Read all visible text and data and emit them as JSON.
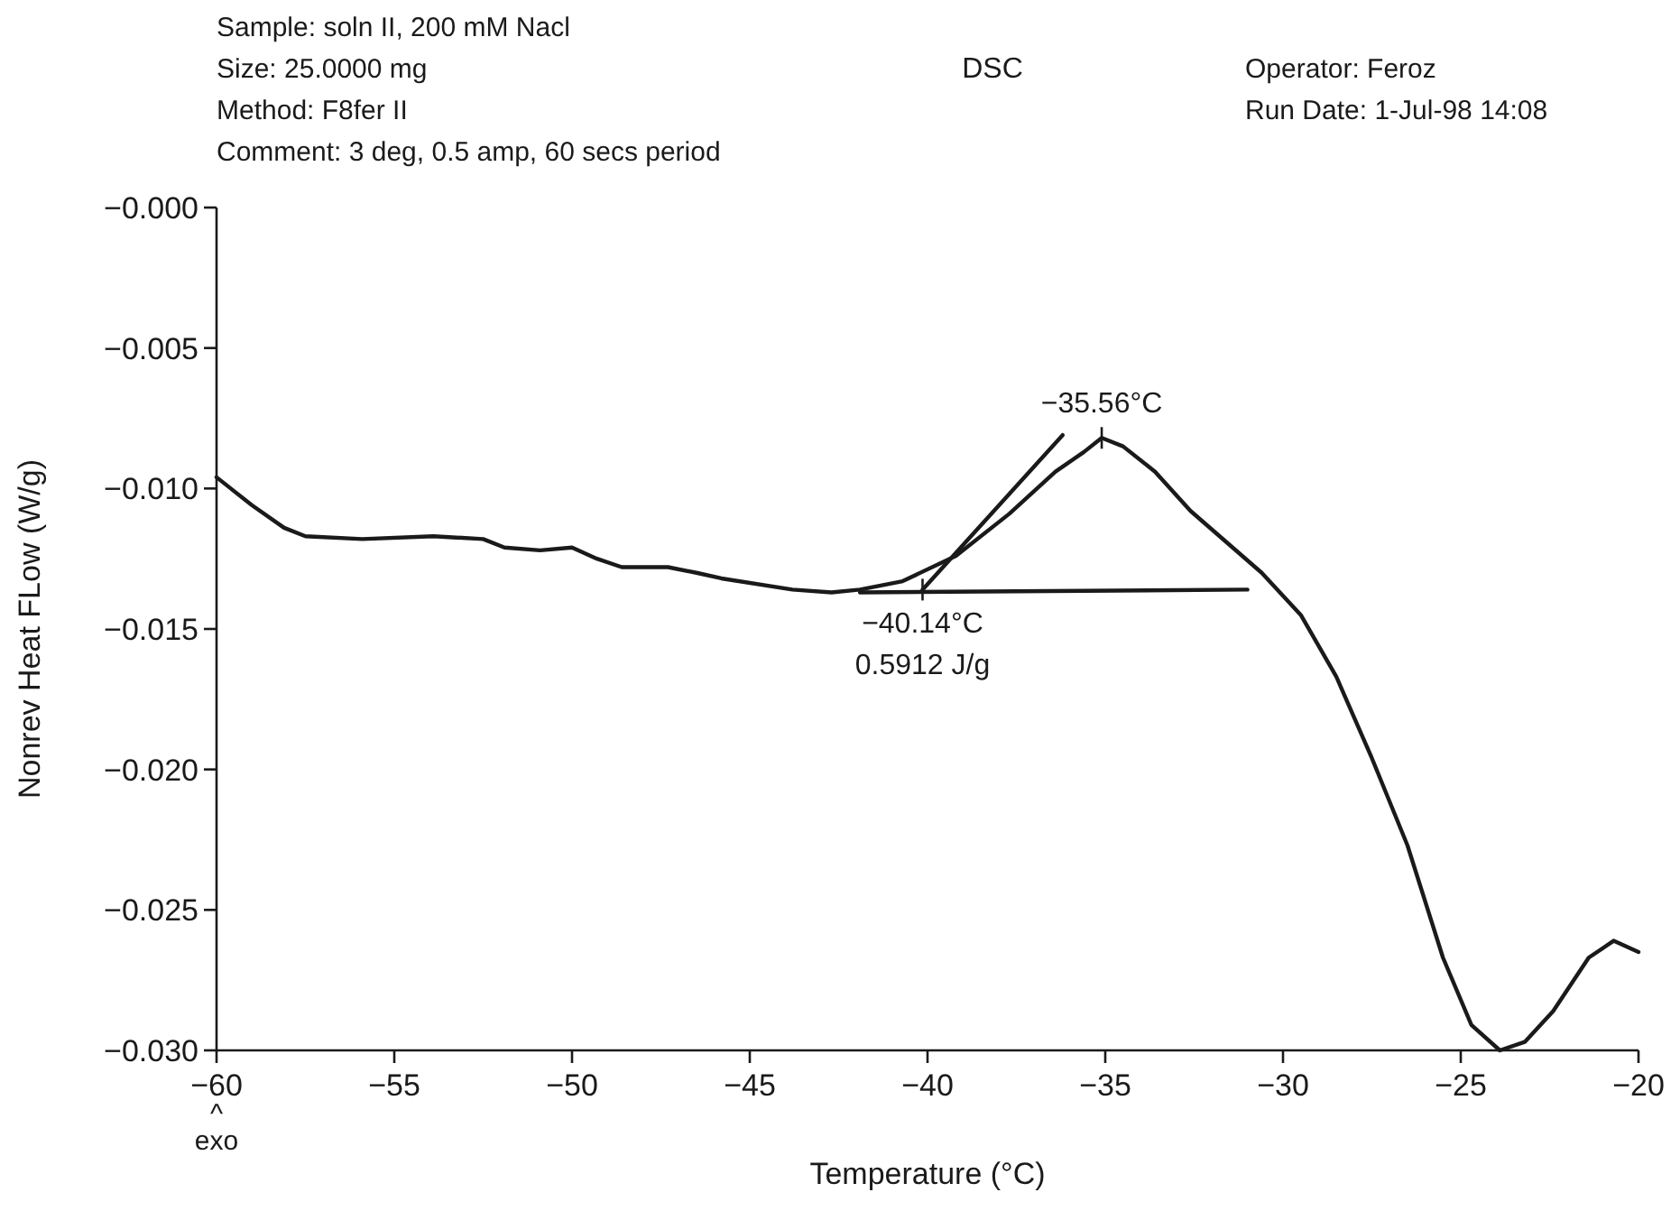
{
  "chart_data": {
    "type": "line",
    "title": "DSC",
    "xlabel": "Temperature (°C)",
    "ylabel": "Nonrev Heat FLow (W/g)",
    "annotations": [
      "Sample: soln II, 200 mM Nacl",
      "Size: 25.0000 mg",
      "Method: F8fer II",
      "Comment: 3 deg, 0.5 amp, 60 secs period",
      "Operator: Feroz",
      "Run Date: 1-Jul-98  14:08",
      "^ exo",
      "−35.56°C",
      "−40.14°C",
      "0.5912 J/g"
    ],
    "xlim": [
      -60,
      -20
    ],
    "ylim": [
      -0.03,
      0
    ],
    "xticks": [
      {
        "value": -60,
        "label": "−60"
      },
      {
        "value": -55,
        "label": "−55"
      },
      {
        "value": -50,
        "label": "−50"
      },
      {
        "value": -45,
        "label": "−45"
      },
      {
        "value": -40,
        "label": "−40"
      },
      {
        "value": -35,
        "label": "−35"
      },
      {
        "value": -30,
        "label": "−30"
      },
      {
        "value": -25,
        "label": "−25"
      },
      {
        "value": -20,
        "label": "−20"
      }
    ],
    "yticks": [
      {
        "value": 0,
        "label": "−0.000"
      },
      {
        "value": -0.005,
        "label": "−0.005"
      },
      {
        "value": -0.01,
        "label": "−0.010"
      },
      {
        "value": -0.015,
        "label": "−0.015"
      },
      {
        "value": -0.02,
        "label": "−0.020"
      },
      {
        "value": -0.025,
        "label": "−0.025"
      },
      {
        "value": -0.03,
        "label": "−0.030"
      }
    ],
    "grid": false,
    "line_style": "solid",
    "series": [
      {
        "color": "#1a1a1a",
        "x": [
          -60,
          -59,
          -58.1,
          -57.5,
          -55.9,
          -53.9,
          -52.5,
          -51.9,
          -50.9,
          -50,
          -49.3,
          -48.6,
          -47.3,
          -46.5,
          -45.8,
          -43.8,
          -42.7,
          -41.9,
          -40.7,
          -39.2,
          -37.7,
          -36.4,
          -35.6,
          -35.1,
          -34.5,
          -33.6,
          -32.6,
          -31.6,
          -30.6,
          -29.5,
          -28.5,
          -27.5,
          -26.5,
          -25.5,
          -24.7,
          -23.9,
          -23.2,
          -22.4,
          -21.4,
          -20.7,
          -20
        ],
        "values": [
          -0.0096,
          -0.0106,
          -0.0114,
          -0.0117,
          -0.0118,
          -0.0117,
          -0.0118,
          -0.0121,
          -0.0122,
          -0.0121,
          -0.0125,
          -0.0128,
          -0.0128,
          -0.013,
          -0.0132,
          -0.0136,
          -0.0137,
          -0.0136,
          -0.0133,
          -0.0124,
          -0.0109,
          -0.0094,
          -0.0087,
          -0.0082,
          -0.0085,
          -0.0094,
          -0.0108,
          -0.0119,
          -0.013,
          -0.0145,
          -0.0167,
          -0.0196,
          -0.0227,
          -0.0267,
          -0.0291,
          -0.03,
          -0.0297,
          -0.0286,
          -0.0267,
          -0.0261,
          -0.0265
        ]
      },
      {
        "color": "#1a1a1a",
        "x": [
          -41.9,
          -31
        ],
        "values": [
          -0.0137,
          -0.0136
        ]
      },
      {
        "color": "#1a1a1a",
        "x": [
          -40.14,
          -36.2
        ],
        "values": [
          -0.0136,
          -0.0081
        ]
      }
    ]
  }
}
